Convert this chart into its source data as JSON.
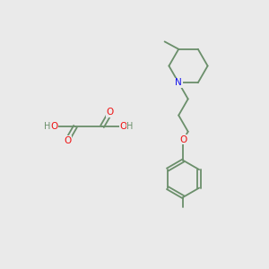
{
  "bg_color": "#eaeaea",
  "bond_color": "#6b8f6b",
  "atom_colors": {
    "O": "#ee1111",
    "N": "#1111ee",
    "H": "#6b8f6b"
  },
  "figsize": [
    3.0,
    3.0
  ],
  "dpi": 100,
  "lw": 1.3,
  "fontsize": 7.0
}
